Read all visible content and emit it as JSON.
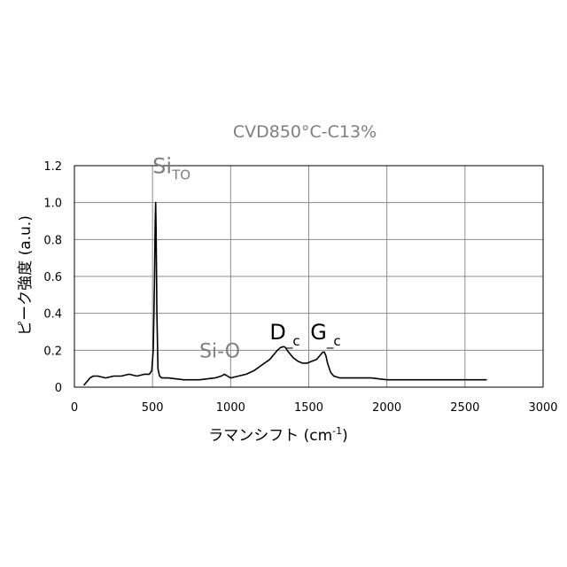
{
  "chart_data": {
    "type": "line",
    "title": "CVD850°C-C13%",
    "xlabel": "ラマンシフト (cm",
    "xlabel_sup": "-1",
    "xlabel_close": ")",
    "ylabel": "ピーク強度 (a.u.)",
    "xlim": [
      0,
      3000
    ],
    "ylim": [
      0,
      1.2
    ],
    "x_ticks": [
      0,
      500,
      1000,
      1500,
      2000,
      2500,
      3000
    ],
    "x_tick_labels": [
      "0",
      "500",
      "1000",
      "1500",
      "2000",
      "2500",
      "3000"
    ],
    "y_ticks": [
      0,
      0.2,
      0.4,
      0.6,
      0.8,
      1.0,
      1.2
    ],
    "y_tick_labels": [
      "0",
      "0.2",
      "0.4",
      "0.6",
      "0.8",
      "1.0",
      "1.2"
    ],
    "grid": true,
    "legend": "none",
    "series": [
      {
        "color": "#000000",
        "x": [
          60,
          80,
          100,
          120,
          150,
          200,
          250,
          300,
          350,
          400,
          450,
          480,
          495,
          505,
          512,
          517,
          520,
          523,
          528,
          535,
          545,
          560,
          600,
          700,
          800,
          900,
          940,
          960,
          980,
          1000,
          1050,
          1100,
          1150,
          1200,
          1250,
          1280,
          1300,
          1320,
          1340,
          1350,
          1370,
          1400,
          1430,
          1460,
          1490,
          1520,
          1550,
          1570,
          1590,
          1600,
          1610,
          1620,
          1640,
          1660,
          1700,
          1750,
          1800,
          1900,
          2000,
          2100,
          2200,
          2300,
          2400,
          2500,
          2600,
          2640
        ],
        "y": [
          0.01,
          0.03,
          0.05,
          0.06,
          0.06,
          0.05,
          0.06,
          0.06,
          0.07,
          0.06,
          0.07,
          0.07,
          0.09,
          0.2,
          0.55,
          0.9,
          1.0,
          0.85,
          0.4,
          0.1,
          0.06,
          0.05,
          0.05,
          0.04,
          0.04,
          0.05,
          0.06,
          0.07,
          0.06,
          0.05,
          0.06,
          0.07,
          0.09,
          0.12,
          0.15,
          0.18,
          0.2,
          0.215,
          0.22,
          0.215,
          0.19,
          0.16,
          0.14,
          0.13,
          0.13,
          0.14,
          0.15,
          0.17,
          0.19,
          0.19,
          0.17,
          0.13,
          0.08,
          0.06,
          0.05,
          0.05,
          0.05,
          0.05,
          0.04,
          0.04,
          0.04,
          0.04,
          0.04,
          0.04,
          0.04,
          0.04
        ]
      }
    ],
    "annotations": [
      {
        "text": "Si",
        "sub": "TO",
        "x": 500,
        "y": 1.16,
        "color": "#7f7f7f",
        "size": 24
      },
      {
        "text": "Si-O",
        "sub": "",
        "x": 800,
        "y": 0.16,
        "color": "#7f7f7f",
        "size": 22
      },
      {
        "text": "D",
        "sub": "_c",
        "x": 1250,
        "y": 0.26,
        "color": "#000000",
        "size": 24
      },
      {
        "text": "G",
        "sub": "_c",
        "x": 1510,
        "y": 0.26,
        "color": "#000000",
        "size": 24
      }
    ]
  }
}
